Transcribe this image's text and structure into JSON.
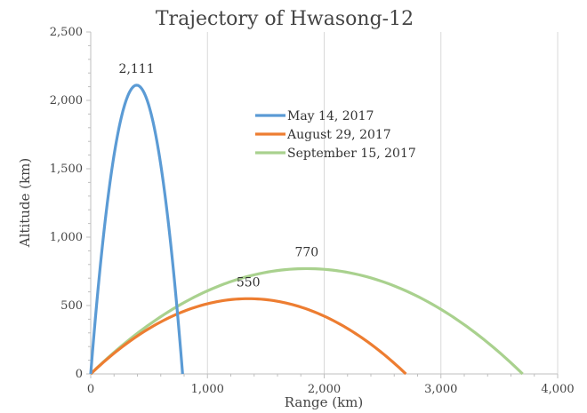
{
  "chart_data": {
    "type": "line",
    "title": "Trajectory of Hwasong-12",
    "xlabel": "Range (km)",
    "ylabel": "Altitude (km)",
    "xlim": [
      0,
      4000
    ],
    "ylim": [
      0,
      2500
    ],
    "xticks": [
      0,
      1000,
      2000,
      3000,
      4000
    ],
    "xtick_labels": [
      "0",
      "1,000",
      "2,000",
      "3,000",
      "4,000"
    ],
    "yticks": [
      0,
      500,
      1000,
      1500,
      2000,
      2500
    ],
    "ytick_labels": [
      "0",
      "500",
      "1,000",
      "1,500",
      "2,000",
      "2,500"
    ],
    "grid": "vertical",
    "legend_position": "center-right",
    "series": [
      {
        "name": "May 14, 2017",
        "color": "#5B9BD5",
        "range_km": 787,
        "apogee_x": 393,
        "apogee_km": 2111,
        "peak_label": "2,111"
      },
      {
        "name": "August 29, 2017",
        "color": "#ED7D31",
        "range_km": 2700,
        "apogee_x": 1350,
        "apogee_km": 550,
        "peak_label": "550"
      },
      {
        "name": "September 15, 2017",
        "color": "#A9D18E",
        "range_km": 3700,
        "apogee_x": 1850,
        "apogee_km": 770,
        "peak_label": "770"
      }
    ]
  }
}
